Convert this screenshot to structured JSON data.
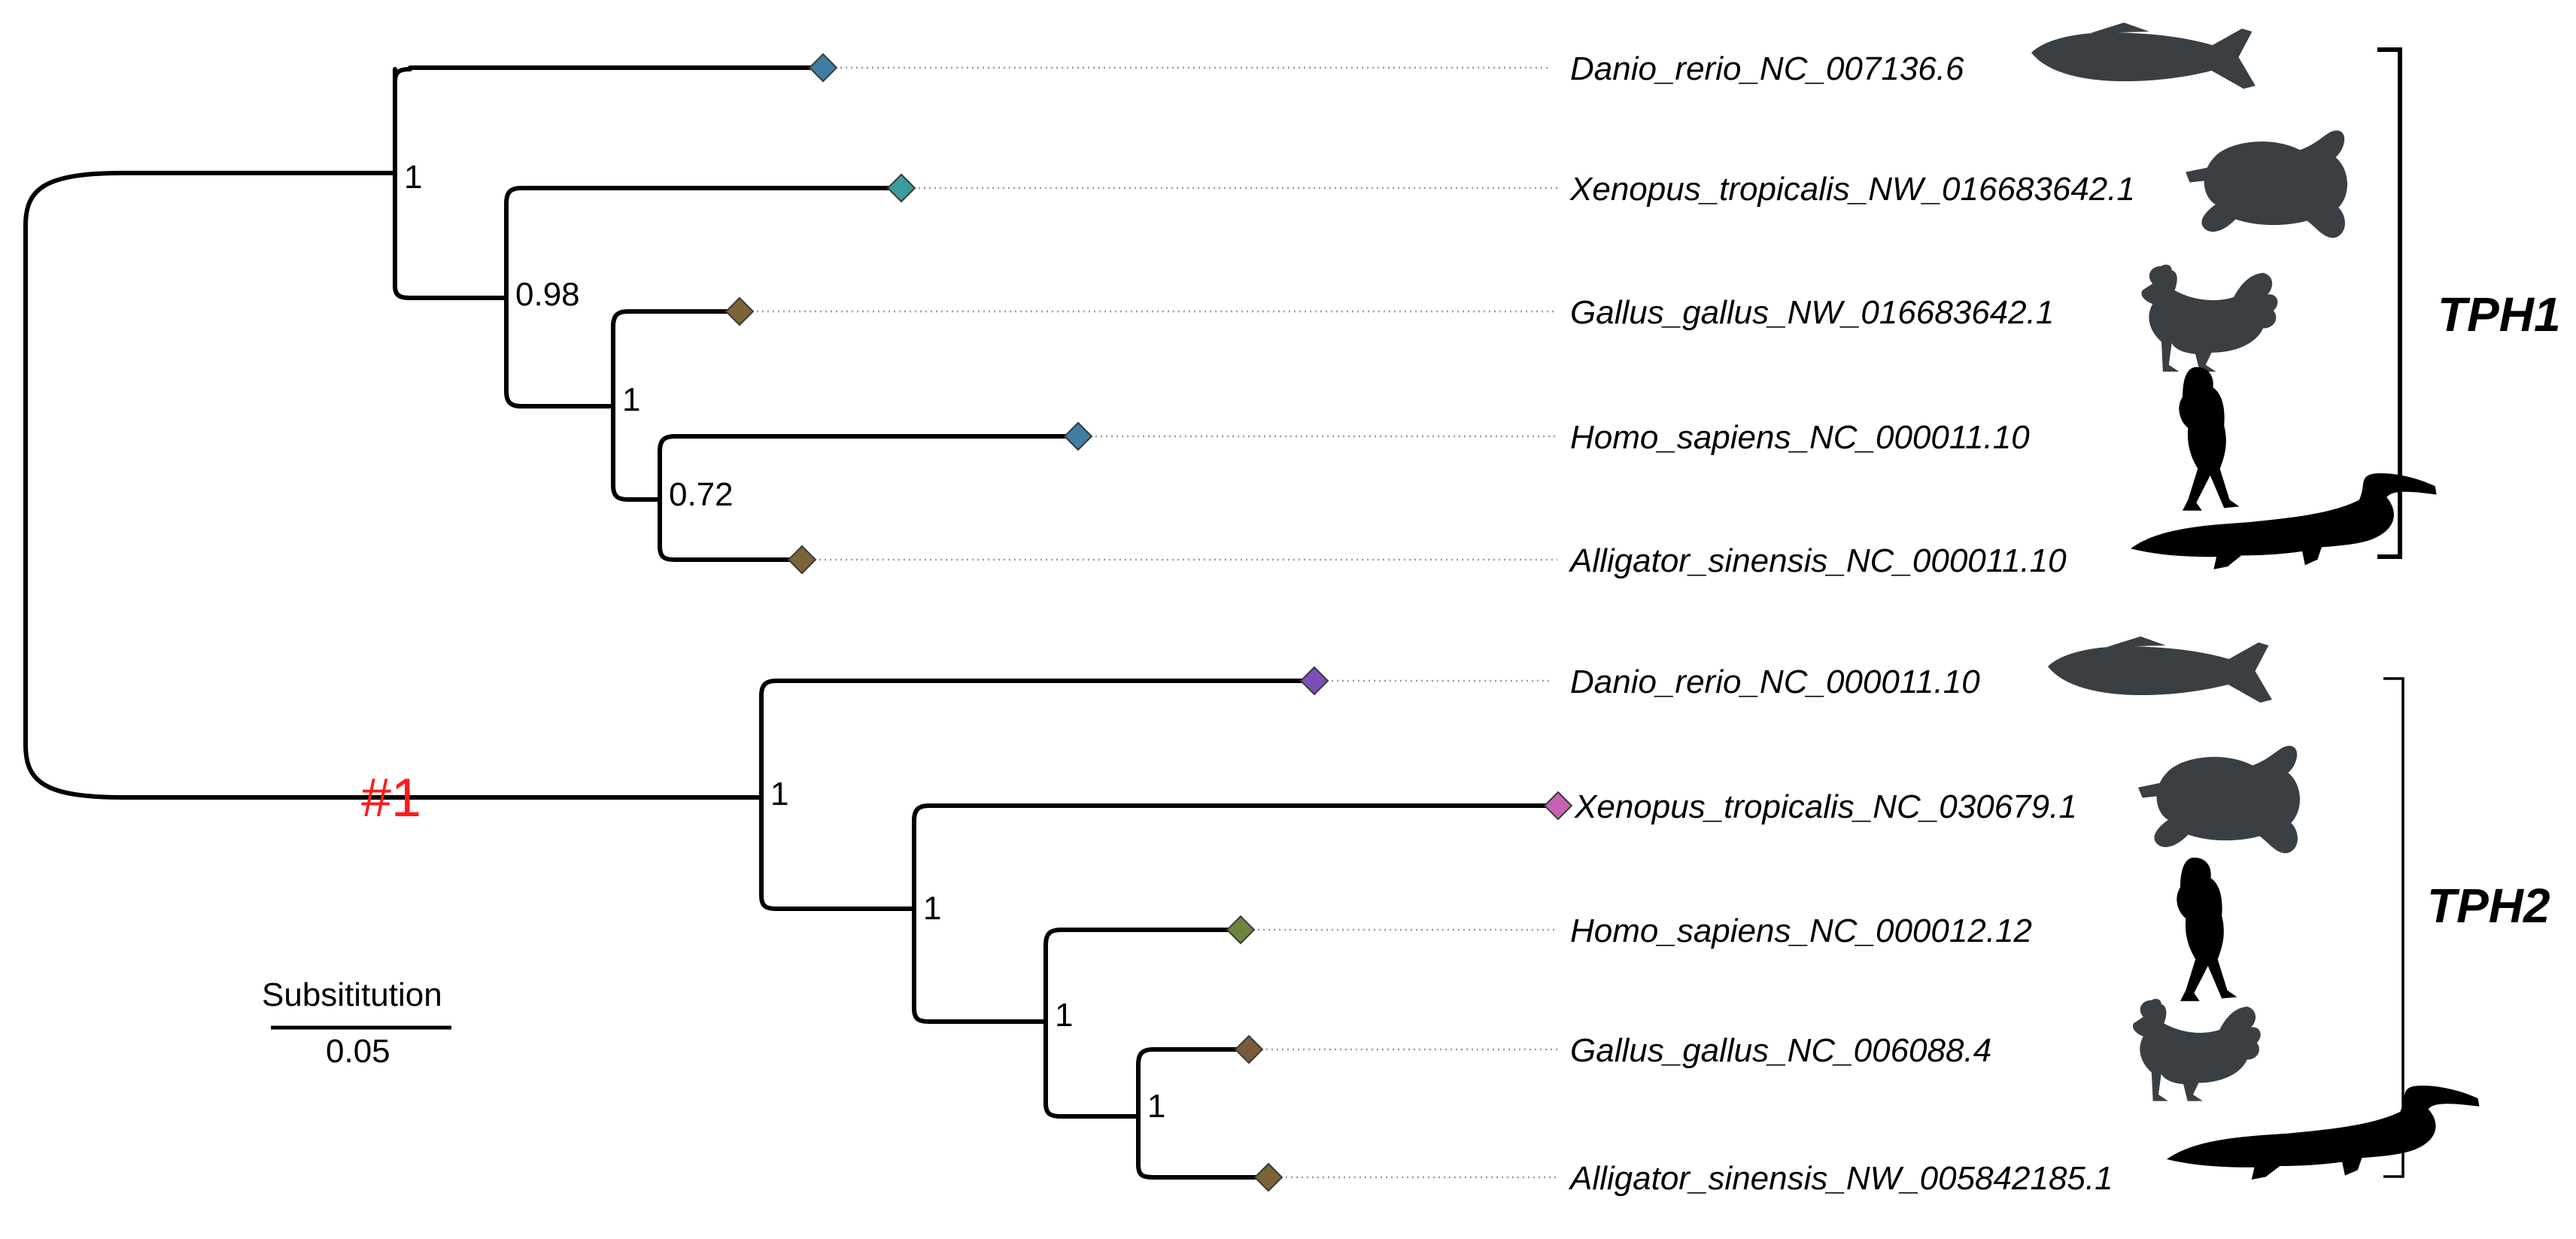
{
  "figure": {
    "title": "",
    "groups": [
      {
        "id": "tph1",
        "label": "TPH1"
      },
      {
        "id": "tph2",
        "label": "TPH2"
      }
    ],
    "event_marker": {
      "label": "#1",
      "color": "#ff1a1a"
    },
    "scale_bar": {
      "label": "Subsititution",
      "value": "0.05"
    }
  },
  "taxa": [
    {
      "name": "Danio_rerio_NC_007136.6",
      "group": "tph1",
      "marker_color": "#3e7ea3",
      "silhouette": "fish-icon"
    },
    {
      "name": "Xenopus_tropicalis_NW_016683642.1",
      "group": "tph1",
      "marker_color": "#3a9c9c",
      "silhouette": "frog-icon"
    },
    {
      "name": "Gallus_gallus_NW_016683642.1",
      "group": "tph1",
      "marker_color": "#7a6438",
      "silhouette": "rooster-icon"
    },
    {
      "name": "Homo_sapiens_NC_000011.10",
      "group": "tph1",
      "marker_color": "#3e7ea3",
      "silhouette": "human-icon"
    },
    {
      "name": "Alligator_sinensis_NC_000011.10",
      "group": "tph1",
      "marker_color": "#7a6438",
      "silhouette": "alligator-icon"
    },
    {
      "name": "Danio_rerio_NC_000011.10",
      "group": "tph2",
      "marker_color": "#7b4fb8",
      "silhouette": "fish-icon"
    },
    {
      "name": "Xenopus_tropicalis_NC_030679.1",
      "group": "tph2",
      "marker_color": "#c663b3",
      "silhouette": "frog-icon"
    },
    {
      "name": "Homo_sapiens_NC_000012.12",
      "group": "tph2",
      "marker_color": "#6e8540",
      "silhouette": "human-icon"
    },
    {
      "name": "Gallus_gallus_NC_006088.4",
      "group": "tph2",
      "marker_color": "#7a5a38",
      "silhouette": "rooster-icon"
    },
    {
      "name": "Alligator_sinensis_NW_005842185.1",
      "group": "tph2",
      "marker_color": "#7a6438",
      "silhouette": "alligator-icon"
    }
  ],
  "support_values": [
    "1",
    "0.98",
    "1",
    "0.72",
    "1",
    "1",
    "1",
    "1"
  ]
}
